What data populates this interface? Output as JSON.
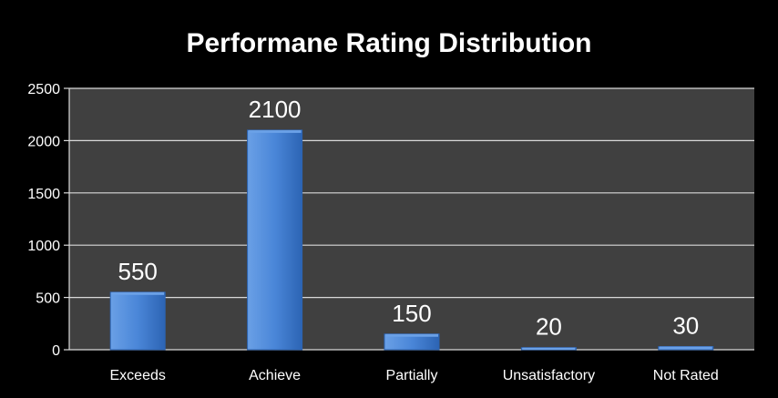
{
  "chart_data": {
    "type": "bar",
    "title": "Performane Rating Distribution",
    "xlabel": "",
    "ylabel": "",
    "categories": [
      "Exceeds",
      "Achieve",
      "Partially",
      "Unsatisfactory",
      "Not Rated"
    ],
    "values": [
      550,
      2100,
      150,
      20,
      30
    ],
    "data_labels": [
      "550",
      "2100",
      "150",
      "20",
      "30"
    ],
    "ylim": [
      0,
      2500
    ],
    "y_ticks": [
      0,
      500,
      1000,
      1500,
      2000,
      2500
    ],
    "y_tick_labels": [
      "0",
      "500",
      "1000",
      "1500",
      "2000",
      "2500"
    ],
    "grid": true,
    "legend": "none"
  },
  "colors": {
    "background": "#000000",
    "plot_area": "#404040",
    "gridline": "#d9d9d9",
    "bar_light": "#6aa0e6",
    "bar_mid": "#4a86d8",
    "bar_dark": "#2c64b4",
    "text": "#ffffff"
  }
}
